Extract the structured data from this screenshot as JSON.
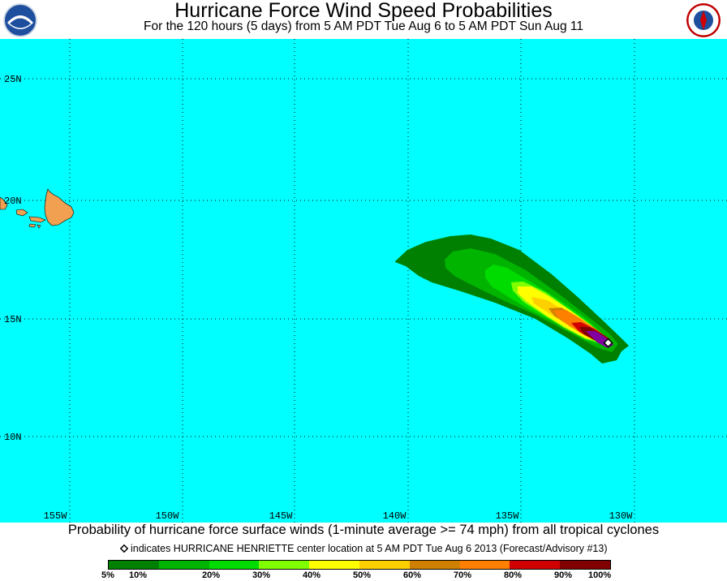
{
  "title": "Hurricane Force Wind Speed Probabilities",
  "subtitle": "For the 120 hours (5 days) from 5 AM PDT Tue Aug 6 to 5 AM PDT Sun Aug 11",
  "logos": {
    "left": "noaa-logo",
    "right": "nws-logo"
  },
  "map": {
    "ocean_color": "#00ffff",
    "land_color": "#f0a050",
    "lat_labels": [
      "25N",
      "20N",
      "15N",
      "10N"
    ],
    "lon_labels": [
      "155W",
      "150W",
      "145W",
      "140W",
      "135W",
      "130W"
    ]
  },
  "caption_main": "Probability of hurricane force surface winds (1-minute average >= 74 mph) from all tropical cyclones",
  "caption_marker": "indicates HURRICANE HENRIETTE center location at 5 AM PDT Tue Aug 6 2013 (Forecast/Advisory #13)",
  "legend": {
    "colors": [
      "#008000",
      "#00b400",
      "#00dc00",
      "#80ff00",
      "#ffff00",
      "#ffd000",
      "#d08000",
      "#ff8000",
      "#d00000",
      "#800000",
      "#8000a0"
    ],
    "labels": [
      "5%",
      "10%",
      "20%",
      "30%",
      "40%",
      "50%",
      "60%",
      "70%",
      "80%",
      "90%",
      "100%"
    ]
  }
}
